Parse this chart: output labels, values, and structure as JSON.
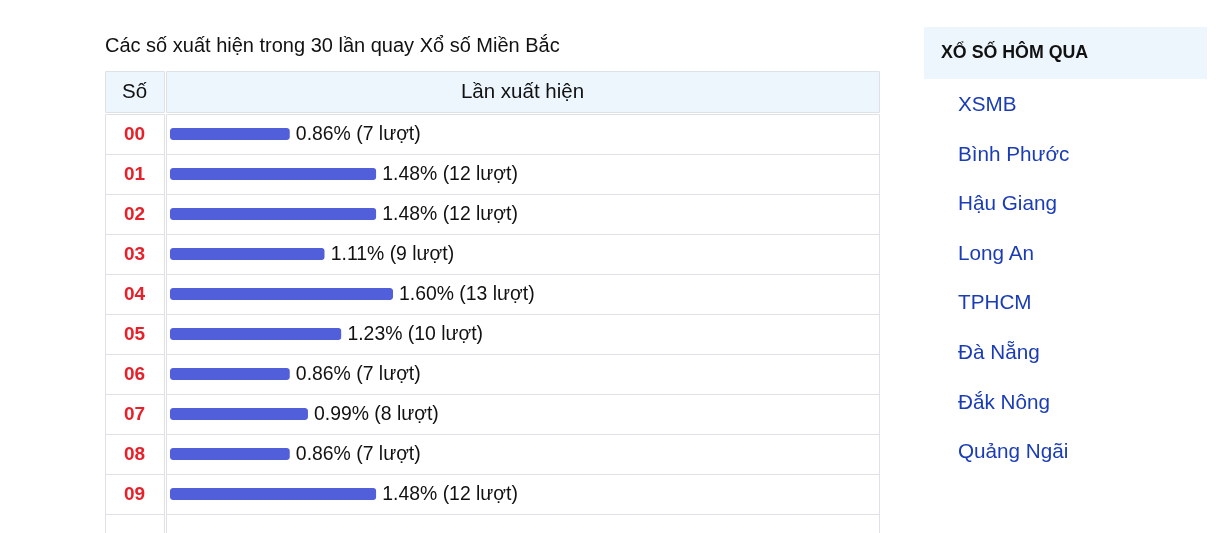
{
  "chart_data": [
    {
      "type": "bar",
      "orientation": "horizontal",
      "title": "Các số xuất hiện trong 30 lần quay Xổ số Miền Bắc",
      "ylabel": "Số",
      "xlabel": "Lần xuất hiện",
      "categories": [
        "00",
        "01",
        "02",
        "03",
        "04",
        "05",
        "06",
        "07",
        "08",
        "09"
      ],
      "values": [
        0.86,
        1.48,
        1.48,
        1.11,
        1.6,
        1.23,
        0.86,
        0.99,
        0.86,
        1.48
      ],
      "value_labels": [
        "0.86% (7 lượt)",
        "1.48% (12 lượt)",
        "1.48% (12 lượt)",
        "1.11% (9 lượt)",
        "1.60% (13 lượt)",
        "1.23% (10 lượt)",
        "0.86% (7 lượt)",
        "0.99% (8 lượt)",
        "0.86% (7 lượt)",
        "1.48% (12 lượt)"
      ],
      "color": "#525fdb",
      "grid": "y"
    },
    {
      "type": "other",
      "title": "XỔ SỐ HÔM QUA",
      "annotations": [
        "XSMB",
        "Bình Phước",
        "Hậu Giang",
        "Long An",
        "TPHCM",
        "Đà Nẵng",
        "Đắk Nông",
        "Quảng Ngãi"
      ]
    }
  ]
}
